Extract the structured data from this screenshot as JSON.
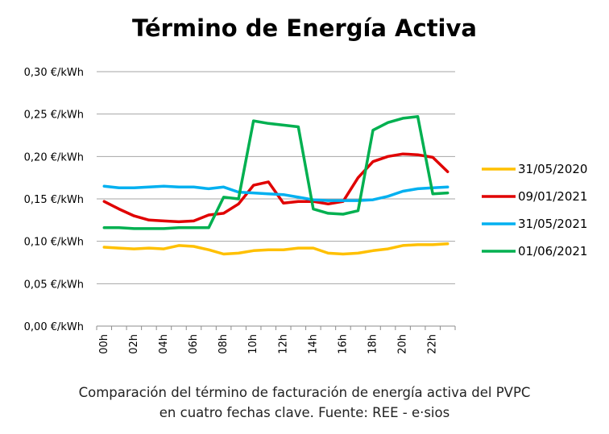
{
  "chart_data": {
    "type": "line",
    "title": "Término de Energía Activa",
    "xlabel": "",
    "ylabel": "",
    "x": [
      "00h",
      "01h",
      "02h",
      "03h",
      "04h",
      "05h",
      "06h",
      "07h",
      "08h",
      "09h",
      "10h",
      "11h",
      "12h",
      "13h",
      "14h",
      "15h",
      "16h",
      "17h",
      "18h",
      "19h",
      "20h",
      "21h",
      "22h",
      "23h"
    ],
    "x_tick_labels": [
      "00h",
      "02h",
      "04h",
      "06h",
      "08h",
      "10h",
      "12h",
      "14h",
      "16h",
      "18h",
      "20h",
      "22h"
    ],
    "y_tick_labels": [
      "0,00 €/kWh",
      "0,05 €/kWh",
      "0,10 €/kWh",
      "0,15 €/kWh",
      "0,20 €/kWh",
      "0,25 €/kWh",
      "0,30 €/kWh"
    ],
    "ylim": [
      0,
      0.3
    ],
    "y_ticks": [
      0,
      0.05,
      0.1,
      0.15,
      0.2,
      0.25,
      0.3
    ],
    "grid": true,
    "legend_position": "right",
    "series": [
      {
        "name": "31/05/2020",
        "color": "#FFC000",
        "values": [
          0.093,
          0.092,
          0.091,
          0.092,
          0.091,
          0.095,
          0.094,
          0.09,
          0.085,
          0.086,
          0.089,
          0.09,
          0.09,
          0.092,
          0.092,
          0.086,
          0.085,
          0.086,
          0.089,
          0.091,
          0.095,
          0.096,
          0.096,
          0.097
        ]
      },
      {
        "name": "09/01/2021",
        "color": "#E00000",
        "values": [
          0.147,
          0.138,
          0.13,
          0.125,
          0.124,
          0.123,
          0.124,
          0.131,
          0.133,
          0.144,
          0.166,
          0.17,
          0.145,
          0.147,
          0.147,
          0.144,
          0.147,
          0.175,
          0.194,
          0.2,
          0.203,
          0.202,
          0.199,
          0.182
        ]
      },
      {
        "name": "31/05/2021",
        "color": "#00B0F0",
        "values": [
          0.165,
          0.163,
          0.163,
          0.164,
          0.165,
          0.164,
          0.164,
          0.162,
          0.164,
          0.158,
          0.157,
          0.156,
          0.155,
          0.152,
          0.149,
          0.148,
          0.148,
          0.148,
          0.149,
          0.153,
          0.159,
          0.162,
          0.163,
          0.164
        ]
      },
      {
        "name": "01/06/2021",
        "color": "#00B050",
        "values": [
          0.116,
          0.116,
          0.115,
          0.115,
          0.115,
          0.116,
          0.116,
          0.116,
          0.152,
          0.15,
          0.242,
          0.239,
          0.237,
          0.235,
          0.138,
          0.133,
          0.132,
          0.136,
          0.231,
          0.24,
          0.245,
          0.247,
          0.156,
          0.157
        ]
      }
    ]
  },
  "caption": {
    "line1": "Comparación del término de facturación de energía activa del PVPC",
    "line2": "en cuatro fechas clave. Fuente: REE - e·sios"
  }
}
